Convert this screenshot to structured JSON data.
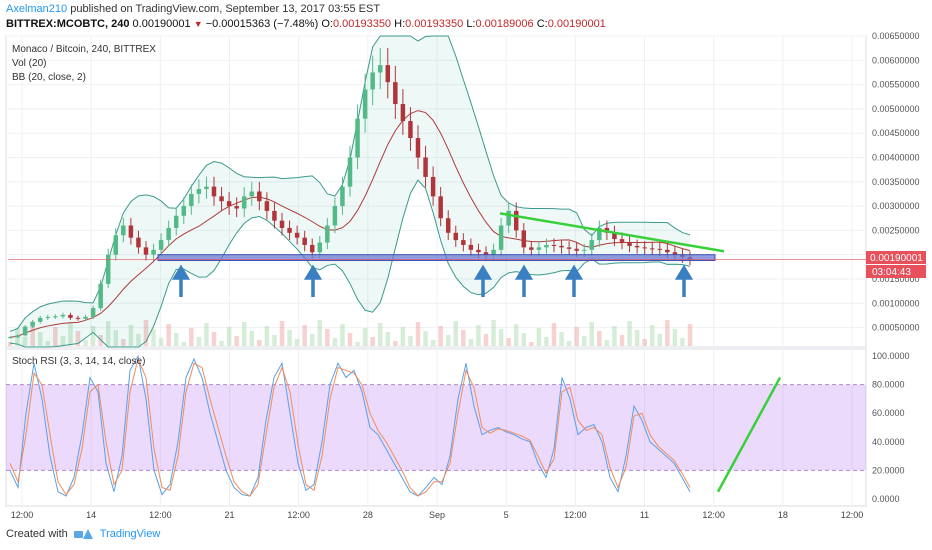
{
  "header": {
    "author": "Axelman210",
    "published": "published on TradingView.com, September 13, 2017 03:55 EST",
    "symbol": "BITTREX:MCOBTC, 240",
    "last": "0.00190001",
    "change": "−0.00015363 (−7.48%)",
    "o_label": "O:",
    "o": "0.00193350",
    "h_label": "H:",
    "h": "0.00193350",
    "l_label": "L:",
    "l": "0.00189006",
    "c_label": "C:",
    "c": "0.00190001"
  },
  "footer": {
    "created": "Created with",
    "brand": "TradingView"
  },
  "chart_data": [
    {
      "type": "candlestick",
      "title": "Monaco / Bitcoin, 240, BITTREX",
      "indicators": [
        "Vol (20)",
        "BB (20, close, 2)"
      ],
      "ylim": [
        0.0001,
        0.0065
      ],
      "y_ticks": [
        "0.00650000",
        "0.00600000",
        "0.00550000",
        "0.00500000",
        "0.00450000",
        "0.00400000",
        "0.00350000",
        "0.00300000",
        "0.00250000",
        "0.00200000",
        "0.00150000",
        "0.00100000",
        "0.00050000"
      ],
      "x_ticks": [
        "12:00",
        "14",
        "12:00",
        "21",
        "12:00",
        "28",
        "Sep",
        "5",
        "12:00",
        "11",
        "12:00",
        "18",
        "12:00"
      ],
      "price_label": "0.00190001",
      "time_label": "03:04:43",
      "price_series": [
        0.0003,
        0.00034,
        0.00052,
        0.00062,
        0.0007,
        0.00072,
        0.00073,
        0.00076,
        0.0007,
        0.00068,
        0.00072,
        0.0009,
        0.0014,
        0.002,
        0.0024,
        0.0026,
        0.00235,
        0.00215,
        0.002,
        0.0021,
        0.0023,
        0.00255,
        0.0028,
        0.003,
        0.00325,
        0.00335,
        0.0034,
        0.0032,
        0.0031,
        0.003,
        0.00295,
        0.0032,
        0.0033,
        0.0031,
        0.0029,
        0.0027,
        0.00255,
        0.00245,
        0.00235,
        0.0022,
        0.00205,
        0.00225,
        0.0026,
        0.003,
        0.0034,
        0.004,
        0.0048,
        0.0054,
        0.00575,
        0.0059,
        0.00555,
        0.0051,
        0.00475,
        0.0044,
        0.004,
        0.0036,
        0.0032,
        0.00275,
        0.00245,
        0.0023,
        0.0022,
        0.0021,
        0.00205,
        0.002,
        0.0021,
        0.0026,
        0.0029,
        0.0025,
        0.00215,
        0.0021,
        0.00215,
        0.0022,
        0.00218,
        0.00215,
        0.00212,
        0.00208,
        0.0021,
        0.0023,
        0.00255,
        0.00245,
        0.00232,
        0.00225,
        0.00218,
        0.00215,
        0.00213,
        0.00212,
        0.0021,
        0.00205,
        0.002,
        0.00195,
        0.0019
      ],
      "support_zone": [
        0.00188,
        0.002
      ],
      "resistance_line": [
        0.00285,
        0.00207
      ],
      "support_arrows": 6
    },
    {
      "type": "line",
      "title": "Stoch RSI (3, 3, 14, 14, close)",
      "ylim": [
        -5,
        105
      ],
      "y_ticks": [
        "100.0000",
        "80.0000",
        "60.0000",
        "40.0000",
        "20.0000",
        "0.0000"
      ],
      "band": [
        20,
        80
      ],
      "series": [
        {
          "values": [
            20,
            8,
            60,
            95,
            70,
            30,
            5,
            2,
            15,
            45,
            85,
            75,
            25,
            5,
            30,
            90,
            100,
            70,
            20,
            3,
            10,
            40,
            85,
            98,
            85,
            60,
            40,
            20,
            8,
            3,
            2,
            15,
            55,
            85,
            95,
            60,
            25,
            6,
            10,
            40,
            80,
            95,
            85,
            90,
            75,
            50,
            45,
            35,
            25,
            15,
            5,
            2,
            8,
            15,
            10,
            30,
            70,
            95,
            65,
            45,
            48,
            50,
            47,
            45,
            42,
            40,
            25,
            15,
            35,
            85,
            70,
            45,
            50,
            52,
            40,
            15,
            5,
            30,
            65,
            55,
            40,
            35,
            30,
            25,
            15,
            5
          ]
        },
        {
          "values": [
            25,
            12,
            45,
            88,
            80,
            45,
            12,
            3,
            10,
            35,
            75,
            80,
            40,
            10,
            20,
            75,
            98,
            85,
            35,
            8,
            6,
            30,
            75,
            95,
            92,
            70,
            50,
            30,
            12,
            5,
            2,
            10,
            45,
            78,
            92,
            75,
            38,
            10,
            6,
            30,
            70,
            92,
            90,
            88,
            80,
            60,
            48,
            40,
            30,
            20,
            8,
            2,
            5,
            12,
            12,
            25,
            60,
            90,
            78,
            50,
            46,
            49,
            48,
            46,
            44,
            41,
            30,
            18,
            28,
            75,
            78,
            55,
            48,
            50,
            45,
            22,
            8,
            22,
            58,
            60,
            45,
            37,
            32,
            27,
            18,
            8
          ]
        }
      ],
      "projection_line": [
        5,
        85
      ]
    }
  ]
}
